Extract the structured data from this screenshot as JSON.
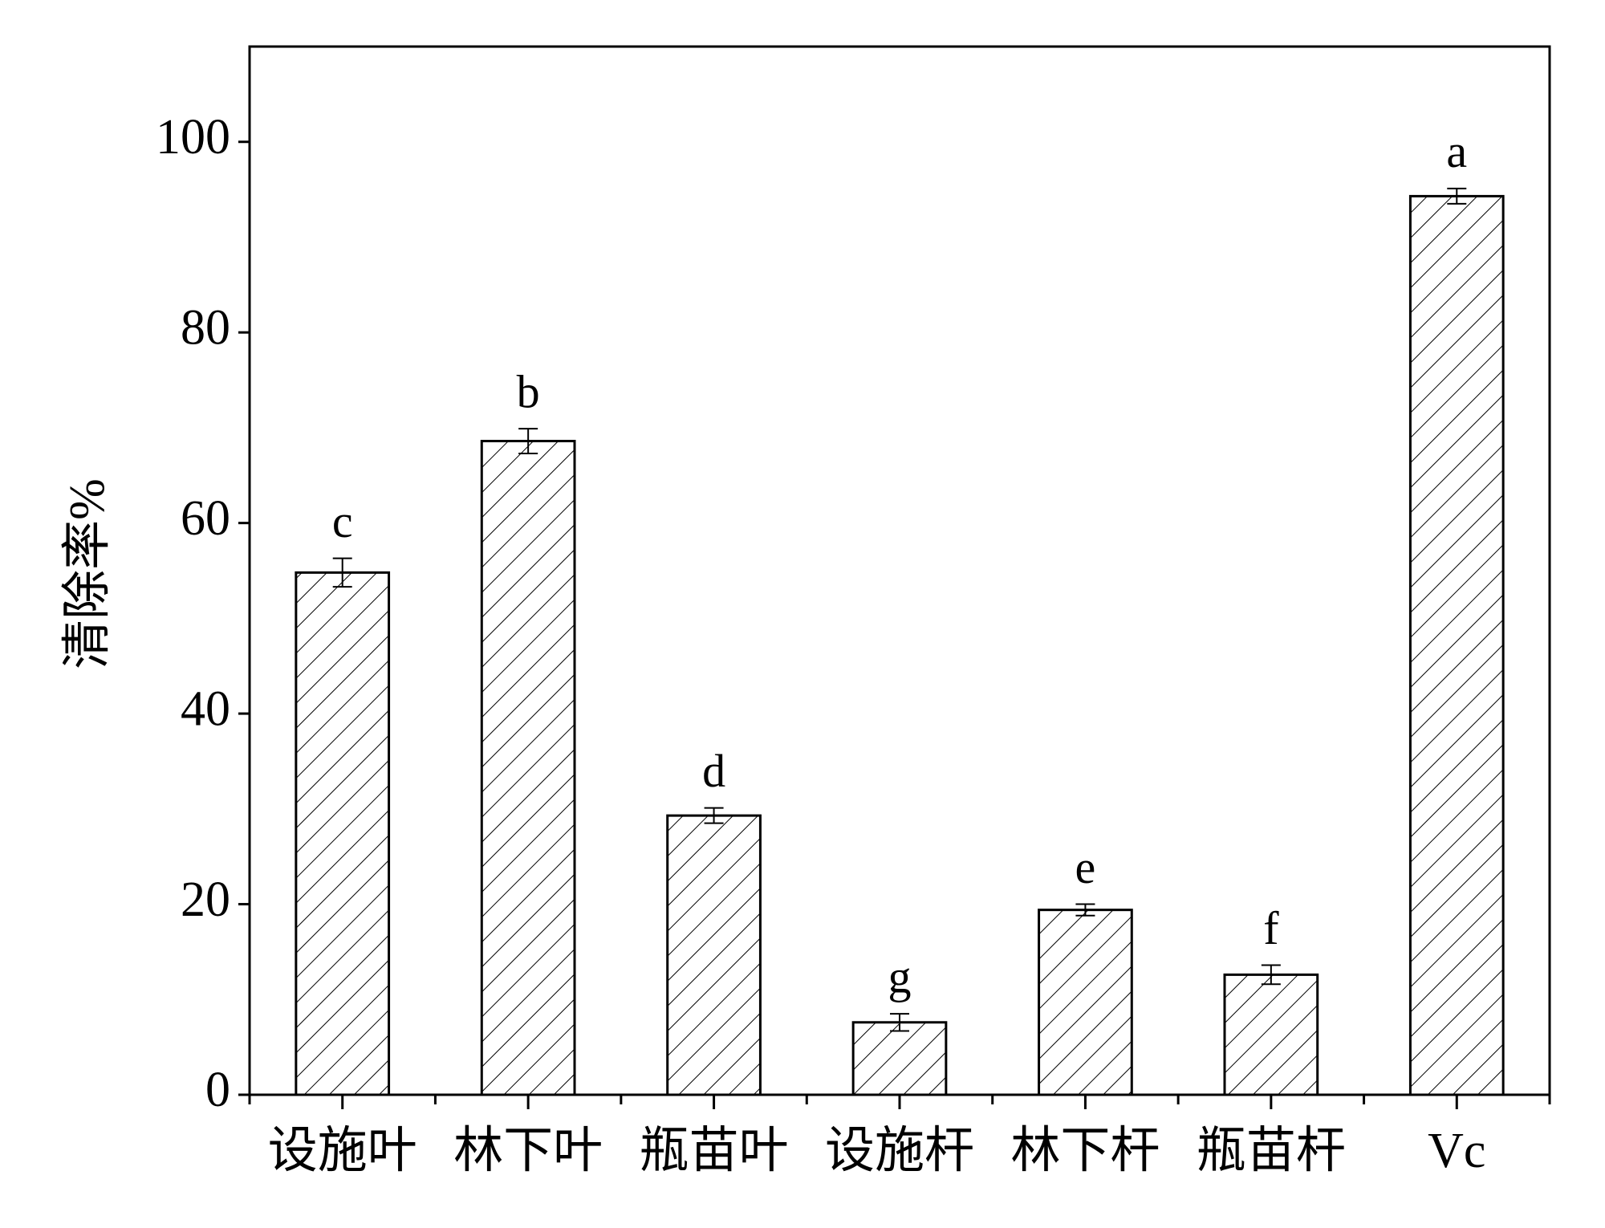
{
  "chart_data": {
    "type": "bar",
    "y_label": "清除率%",
    "categories": [
      "设施叶",
      "林下叶",
      "瓶苗叶",
      "设施杆",
      "林下杆",
      "瓶苗杆",
      "Vc"
    ],
    "values": [
      54.8,
      68.6,
      29.3,
      7.6,
      19.4,
      12.6,
      94.3
    ],
    "errors": [
      1.5,
      1.3,
      0.8,
      0.9,
      0.6,
      1.0,
      0.8
    ],
    "significance_labels": [
      "c",
      "b",
      "d",
      "g",
      "e",
      "f",
      "a"
    ],
    "color": "#000000",
    "ylim": [
      0,
      110
    ],
    "yticks": [
      0,
      20,
      40,
      60,
      80,
      100
    ],
    "grid": false
  }
}
